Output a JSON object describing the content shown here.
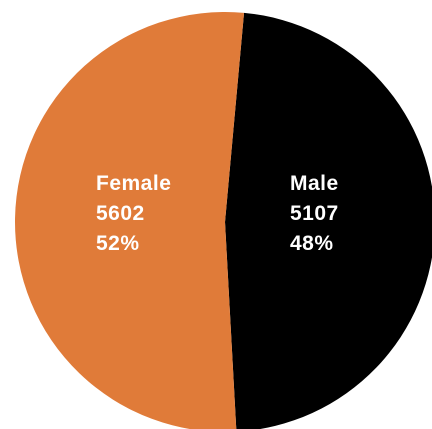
{
  "chart_data": {
    "type": "pie",
    "slices": [
      {
        "label": "Male",
        "value": 5107,
        "percent": "48%",
        "color": "#000000"
      },
      {
        "label": "Female",
        "value": 5602,
        "percent": "52%",
        "color": "#E07B39"
      }
    ],
    "legend": "none",
    "title": ""
  }
}
